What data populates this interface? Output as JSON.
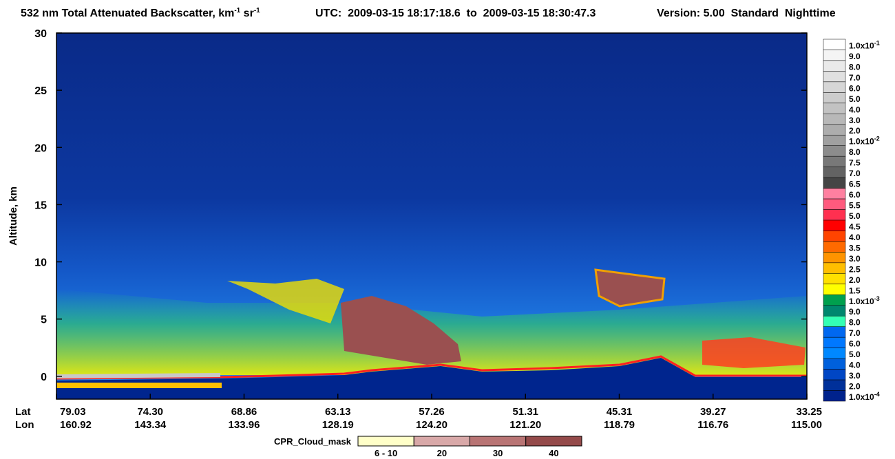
{
  "chart_data": {
    "type": "curtain",
    "title": {
      "text": "532 nm Total Attenuated Backscatter, km",
      "sup1": "-1",
      "mid": " sr",
      "sup2": "-1"
    },
    "utc": "UTC:  2009-03-15 18:17:18.6  to  2009-03-15 18:30:47.3",
    "version": "Version: 5.00  Standard  Nighttime",
    "ylabel": "Altitude, km",
    "ylim": [
      -2,
      30
    ],
    "yticks": [
      0,
      5,
      10,
      15,
      20,
      25,
      30
    ],
    "lat_label": "Lat",
    "lon_label": "Lon",
    "lat": [
      "79.03",
      "74.30",
      "68.86",
      "63.13",
      "57.26",
      "51.31",
      "45.31",
      "39.27",
      "33.25"
    ],
    "lon": [
      "160.92",
      "143.34",
      "133.96",
      "128.19",
      "124.20",
      "121.20",
      "118.79",
      "116.76",
      "115.00"
    ],
    "colorbar": {
      "labels": [
        {
          "text": "1.0x10",
          "sup": "-1"
        },
        "9.0",
        "8.0",
        "7.0",
        "6.0",
        "5.0",
        "4.0",
        "3.0",
        "2.0",
        {
          "text": "1.0x10",
          "sup": "-2"
        },
        "8.0",
        "7.5",
        "7.0",
        "6.5",
        "6.0",
        "5.5",
        "5.0",
        "4.5",
        "4.0",
        "3.5",
        "3.0",
        "2.5",
        "2.0",
        "1.5",
        {
          "text": "1.0x10",
          "sup": "-3"
        },
        "9.0",
        "8.0",
        "7.0",
        "6.0",
        "5.0",
        "4.0",
        "3.0",
        "2.0",
        {
          "text": "1.0x10",
          "sup": "-4"
        }
      ],
      "colors": [
        "#ffffff",
        "#f4f4f4",
        "#eaeaea",
        "#e0e0e0",
        "#d6d6d6",
        "#cccccc",
        "#c2c2c2",
        "#b8b8b8",
        "#adadad",
        "#a0a0a0",
        "#8c8c8c",
        "#787878",
        "#636363",
        "#454545",
        "#ff80a0",
        "#ff5a7e",
        "#ff3050",
        "#ff0000",
        "#ff4400",
        "#ff6a00",
        "#ff9400",
        "#ffbe00",
        "#ffe000",
        "#ffff00",
        "#00a04e",
        "#00876e",
        "#33ffb4",
        "#0068f0",
        "#0078ff",
        "#0088ff",
        "#0060dc",
        "#0046c4",
        "#00309a",
        "#00228c"
      ]
    },
    "cloud_mask": {
      "label": "CPR_Cloud_mask",
      "labels": [
        "6 - 10",
        "20",
        "30",
        "40"
      ],
      "colors": [
        "#ffffc8",
        "#d8a8a8",
        "#b87474",
        "#944a4a"
      ]
    }
  }
}
